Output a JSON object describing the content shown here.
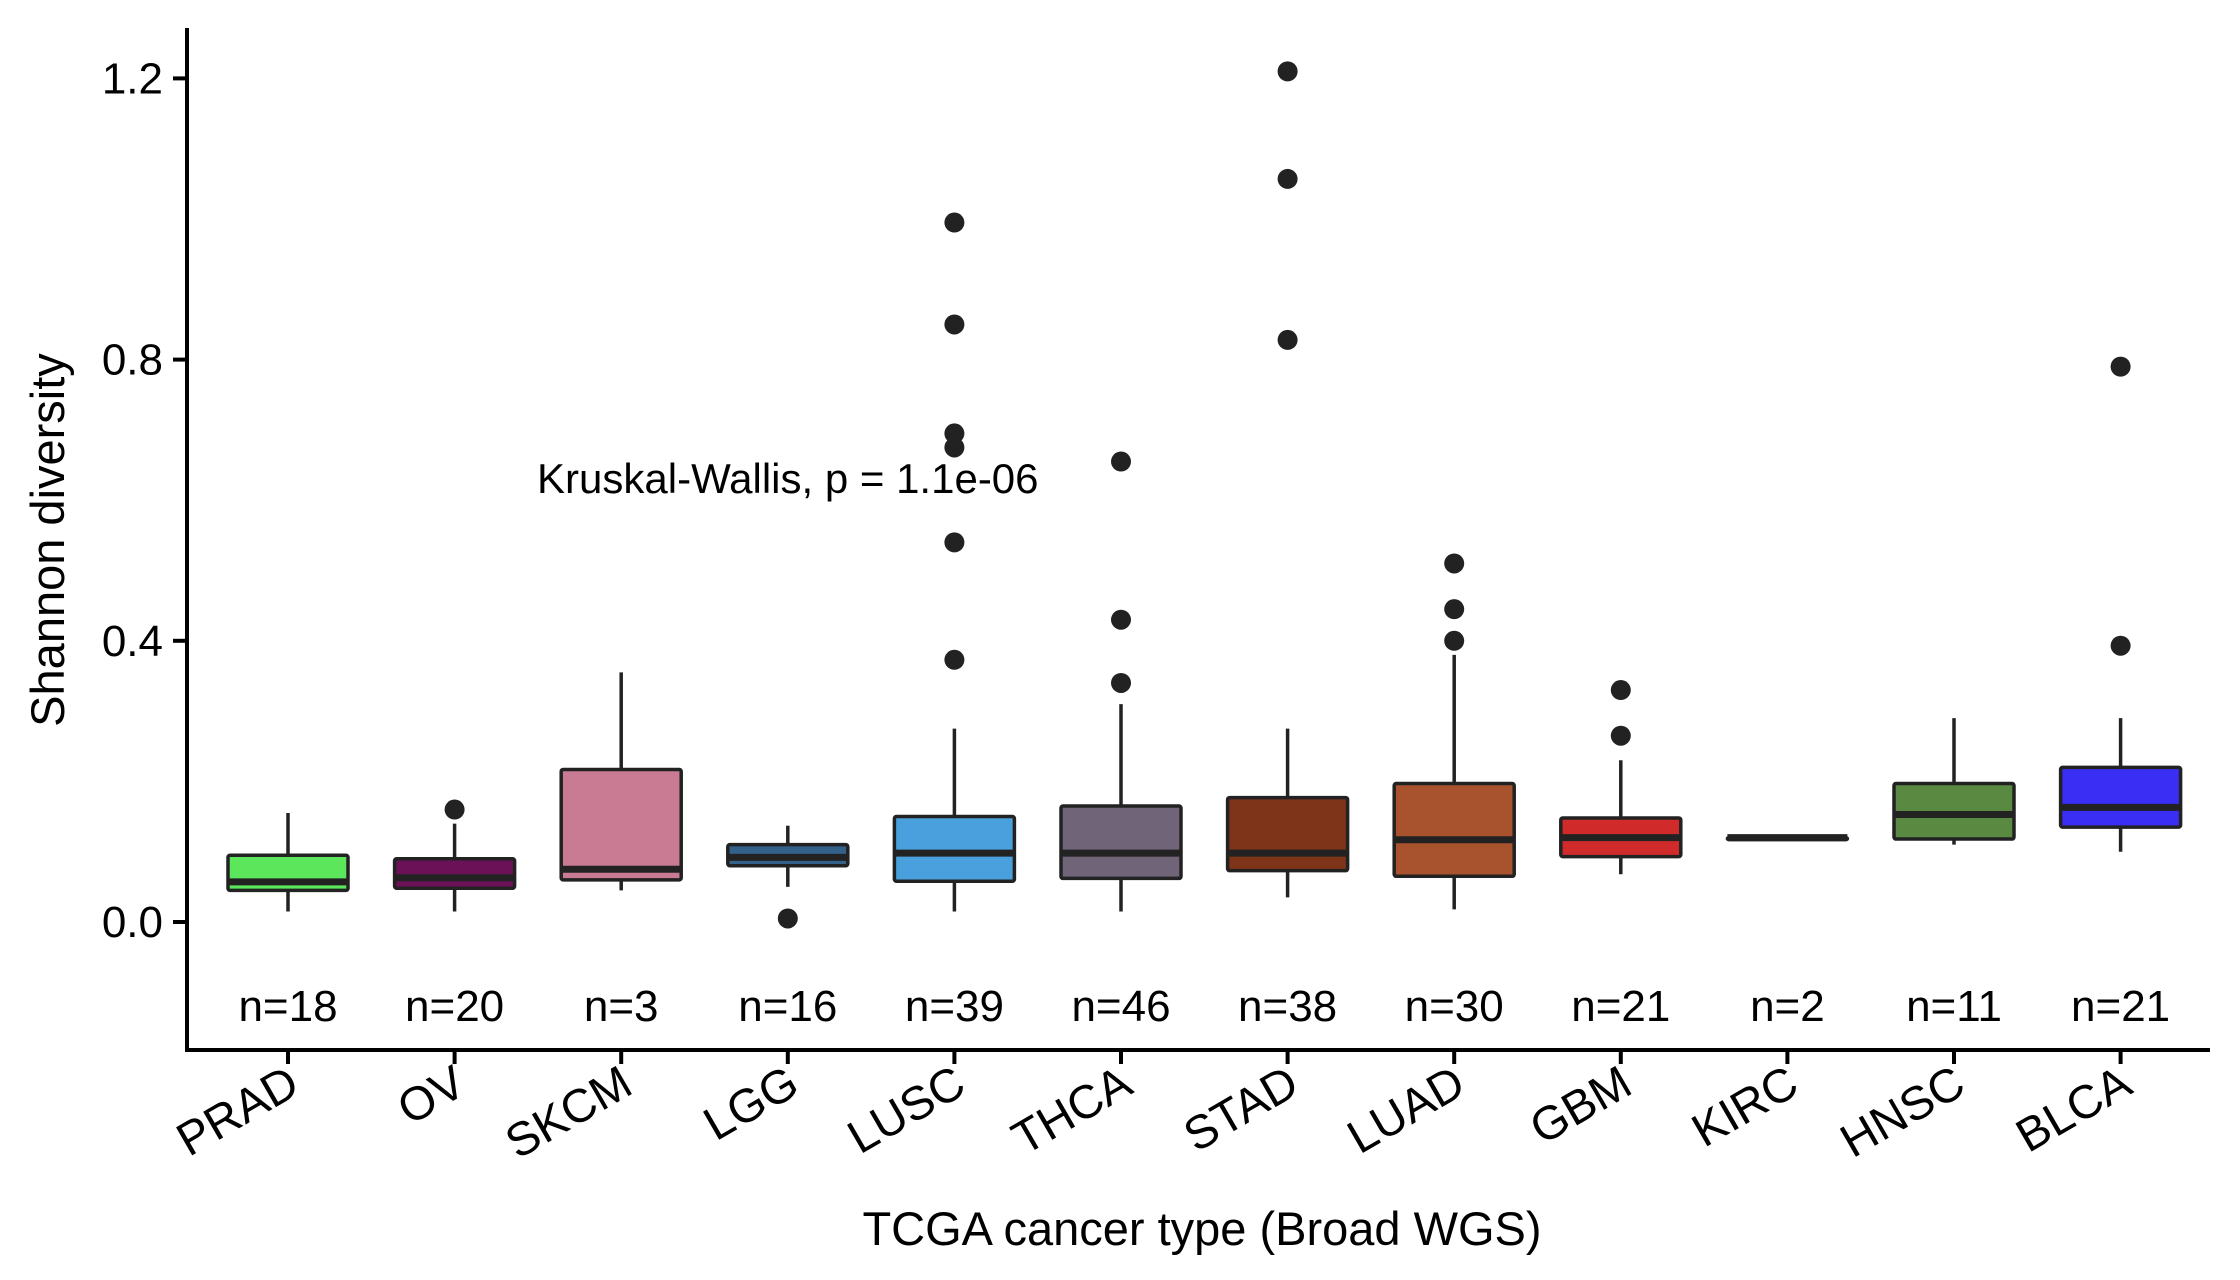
{
  "chart_data": {
    "type": "boxplot",
    "xlabel": "TCGA cancer type (Broad WGS)",
    "ylabel": "Shannon diversity",
    "ylim": [
      -0.18,
      1.26
    ],
    "yticks": [
      0.0,
      0.4,
      0.8,
      1.2
    ],
    "ytick_labels": [
      "0.0",
      "0.4",
      "0.8",
      "1.2"
    ],
    "grid": false,
    "annotation": {
      "text": "Kruskal-Wallis, p = 1.1e-06",
      "x": "LGG",
      "y": 0.63
    },
    "categories": [
      {
        "name": "PRAD",
        "n_label": "n=18",
        "color": "#5ce65c",
        "whisker_low": 0.015,
        "q1": 0.045,
        "median": 0.057,
        "q3": 0.095,
        "whisker_high": 0.155,
        "outliers": []
      },
      {
        "name": "OV",
        "n_label": "n=20",
        "color": "#6b1158",
        "whisker_low": 0.015,
        "q1": 0.048,
        "median": 0.063,
        "q3": 0.09,
        "whisker_high": 0.14,
        "outliers": [
          0.16
        ]
      },
      {
        "name": "SKCM",
        "n_label": "n=3",
        "color": "#c97b93",
        "whisker_low": 0.045,
        "q1": 0.06,
        "median": 0.075,
        "q3": 0.217,
        "whisker_high": 0.355,
        "outliers": []
      },
      {
        "name": "LGG",
        "n_label": "n=16",
        "color": "#33618a",
        "whisker_low": 0.05,
        "q1": 0.08,
        "median": 0.092,
        "q3": 0.11,
        "whisker_high": 0.137,
        "outliers": [
          0.005
        ]
      },
      {
        "name": "LUSC",
        "n_label": "n=39",
        "color": "#49a0dc",
        "whisker_low": 0.015,
        "q1": 0.058,
        "median": 0.098,
        "q3": 0.15,
        "whisker_high": 0.275,
        "outliers": [
          0.373,
          0.54,
          0.675,
          0.695,
          0.85,
          0.995
        ]
      },
      {
        "name": "THCA",
        "n_label": "n=46",
        "color": "#6f6478",
        "whisker_low": 0.015,
        "q1": 0.062,
        "median": 0.098,
        "q3": 0.165,
        "whisker_high": 0.31,
        "outliers": [
          0.34,
          0.43,
          0.655
        ]
      },
      {
        "name": "STAD",
        "n_label": "n=38",
        "color": "#7d3419",
        "whisker_low": 0.035,
        "q1": 0.073,
        "median": 0.098,
        "q3": 0.177,
        "whisker_high": 0.275,
        "outliers": [
          0.828,
          1.057,
          1.21
        ]
      },
      {
        "name": "LUAD",
        "n_label": "n=30",
        "color": "#a8532e",
        "whisker_low": 0.018,
        "q1": 0.065,
        "median": 0.117,
        "q3": 0.197,
        "whisker_high": 0.38,
        "outliers": [
          0.4,
          0.445,
          0.51
        ]
      },
      {
        "name": "GBM",
        "n_label": "n=21",
        "color": "#d02a2a",
        "whisker_low": 0.068,
        "q1": 0.093,
        "median": 0.12,
        "q3": 0.148,
        "whisker_high": 0.23,
        "outliers": [
          0.265,
          0.33
        ]
      },
      {
        "name": "KIRC",
        "n_label": "n=2",
        "color": "#2f4f4f",
        "whisker_low": 0.12,
        "q1": 0.12,
        "median": 0.12,
        "q3": 0.12,
        "whisker_high": 0.12,
        "outliers": []
      },
      {
        "name": "HNSC",
        "n_label": "n=11",
        "color": "#5a8a42",
        "whisker_low": 0.11,
        "q1": 0.118,
        "median": 0.153,
        "q3": 0.197,
        "whisker_high": 0.29,
        "outliers": []
      },
      {
        "name": "BLCA",
        "n_label": "n=21",
        "color": "#3a2ef5",
        "whisker_low": 0.1,
        "q1": 0.135,
        "median": 0.163,
        "q3": 0.22,
        "whisker_high": 0.29,
        "outliers": [
          0.393,
          0.79
        ]
      }
    ]
  }
}
